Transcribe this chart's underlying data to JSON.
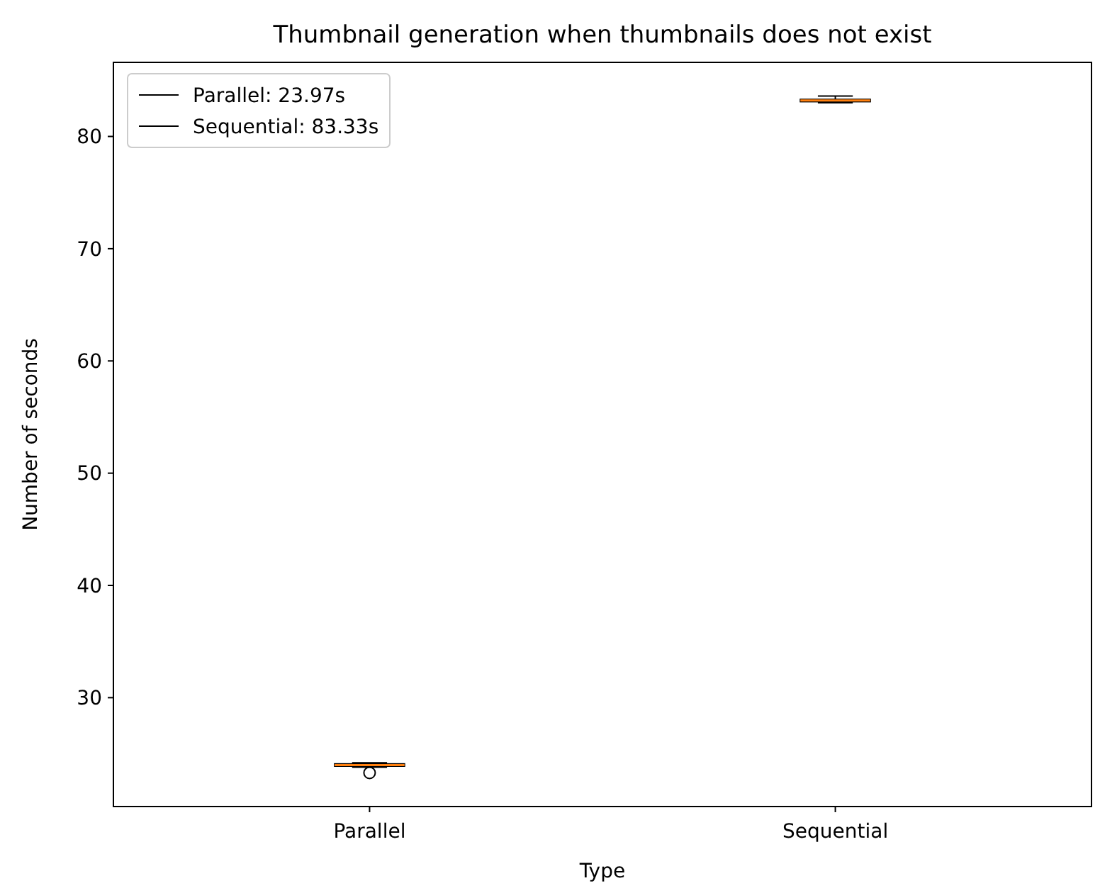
{
  "chart_data": {
    "type": "box",
    "title": "Thumbnail generation when thumbnails does not exist",
    "xlabel": "Type",
    "ylabel": "Number of seconds",
    "categories": [
      "Parallel",
      "Sequential"
    ],
    "ylim": [
      20.3,
      86.6
    ],
    "yticks": [
      30,
      40,
      50,
      60,
      70,
      80
    ],
    "grid": false,
    "legend": "top left",
    "series": [
      {
        "name": "Parallel: 23.97s",
        "color": "#000000",
        "boxes": [
          {
            "low": 23.8,
            "q1": 23.9,
            "median": 24.0,
            "q3": 24.1,
            "high": 24.2,
            "outliers": [
              23.3
            ]
          },
          null
        ]
      },
      {
        "name": "Sequential: 83.33s",
        "color": "#000000",
        "boxes": [
          null,
          {
            "low": 83.0,
            "q1": 83.1,
            "median": 83.2,
            "q3": 83.3,
            "high": 83.6
          }
        ]
      }
    ]
  }
}
